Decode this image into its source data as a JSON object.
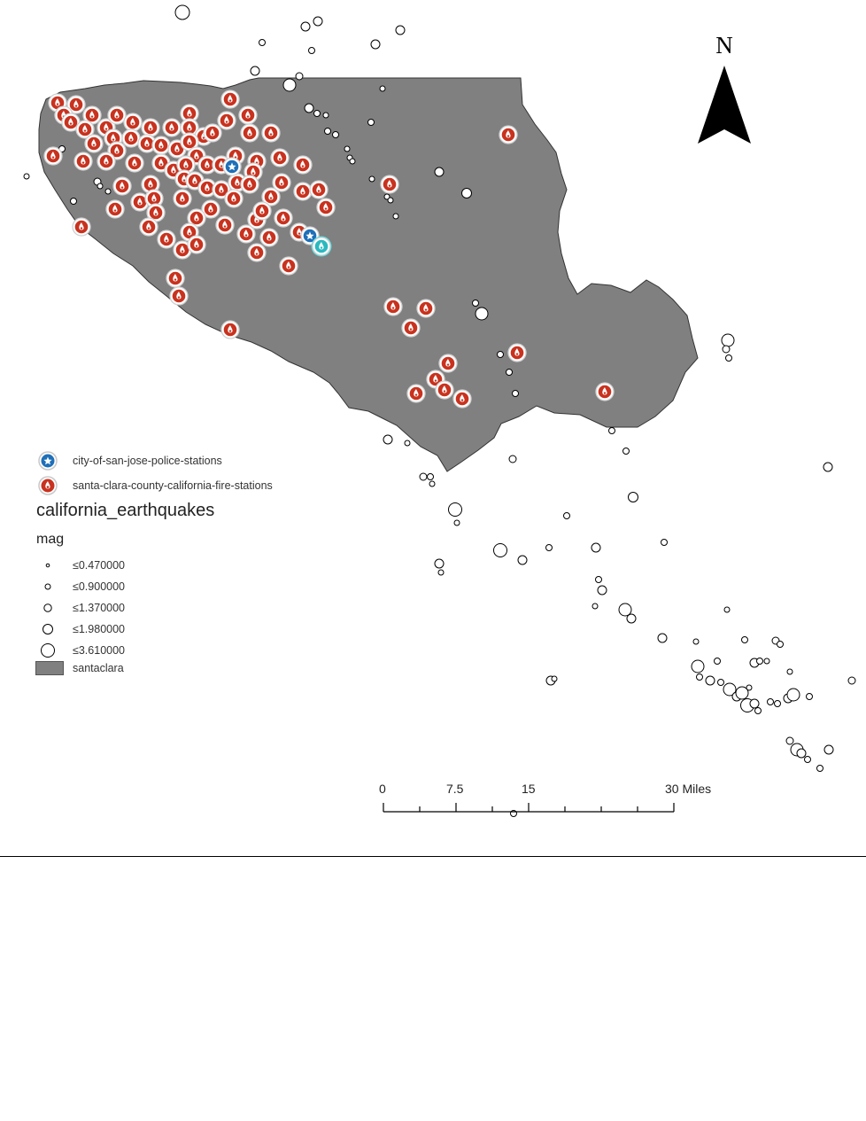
{
  "map": {
    "layers": [
      {
        "name": "santaclara",
        "fill": "#808080",
        "stroke": "#333333"
      },
      {
        "name": "california_earthquakes",
        "field": "mag"
      },
      {
        "name": "city-of-san-jose-police-stations",
        "color": "#1f6fb8"
      },
      {
        "name": "santa-clara-county-california-fire-stations",
        "color": "#c8321e"
      }
    ],
    "selection_color": "#40e0e6"
  },
  "legend": {
    "police_label": "city-of-san-jose-police-stations",
    "fire_label": "santa-clara-county-california-fire-stations",
    "earthquakes_title": "california_earthquakes",
    "field_label": "mag",
    "mag_classes": [
      "≤0.470000",
      "≤0.900000",
      "≤1.370000",
      "≤1.980000",
      "≤3.610000"
    ],
    "county_label": "santaclara"
  },
  "north_arrow": {
    "letter": "N"
  },
  "scale_bar": {
    "labels": [
      "0",
      "7.5",
      "15",
      "30 Miles"
    ]
  }
}
